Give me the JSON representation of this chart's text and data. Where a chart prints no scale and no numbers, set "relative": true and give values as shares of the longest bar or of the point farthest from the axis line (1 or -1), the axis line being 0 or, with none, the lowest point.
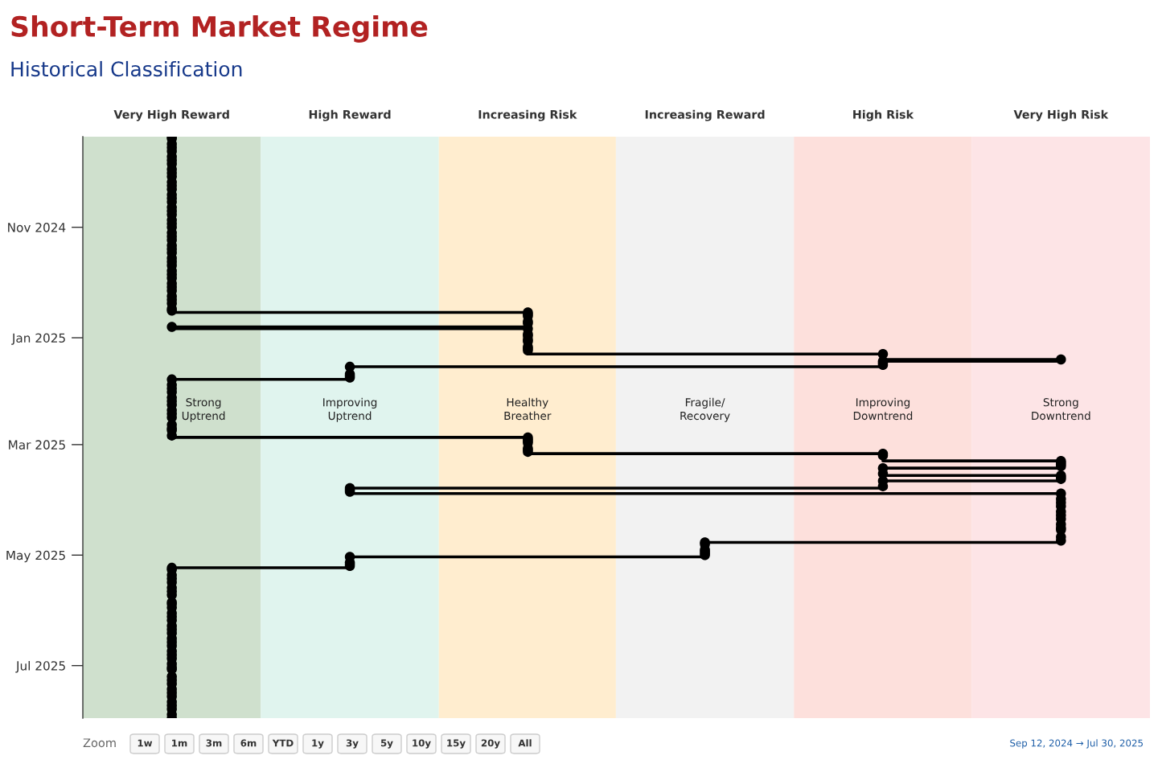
{
  "chart_data": {
    "type": "step",
    "orientation": "horizontal",
    "relative": true,
    "title": "Short-Term Market Regime",
    "subtitle": "Historical Classification",
    "series": [
      {
        "color": "#000000",
        "x": [
          "2024-09-12",
          "2024-09-13",
          "2024-09-16",
          "2024-09-18",
          "2024-09-20",
          "2024-09-23",
          "2024-09-25",
          "2024-09-27",
          "2024-09-30",
          "2024-10-02",
          "2024-10-04",
          "2024-10-07",
          "2024-10-09",
          "2024-10-11",
          "2024-10-14",
          "2024-10-16",
          "2024-10-18",
          "2024-10-21",
          "2024-10-23",
          "2024-10-25",
          "2024-10-28",
          "2024-10-30",
          "2024-11-01",
          "2024-11-04",
          "2024-11-06",
          "2024-11-08",
          "2024-11-11",
          "2024-11-13",
          "2024-11-15",
          "2024-11-18",
          "2024-11-20",
          "2024-11-22",
          "2024-11-25",
          "2024-11-27",
          "2024-11-29",
          "2024-12-02",
          "2024-12-04",
          "2024-12-06",
          "2024-12-09",
          "2024-12-11",
          "2024-12-13",
          "2024-12-16",
          "2024-12-17",
          "2024-12-18",
          "2024-12-19",
          "2024-12-20",
          "2024-12-23",
          "2024-12-24",
          "2024-12-26",
          "2024-12-27",
          "2024-12-30",
          "2024-12-31",
          "2025-01-02",
          "2025-01-03",
          "2025-01-06",
          "2025-01-07",
          "2025-01-08",
          "2025-01-10",
          "2025-01-13",
          "2025-01-14",
          "2025-01-15",
          "2025-01-16",
          "2025-01-17",
          "2025-01-21",
          "2025-01-22",
          "2025-01-23",
          "2025-01-24",
          "2025-01-27",
          "2025-01-29",
          "2025-01-31",
          "2025-02-03",
          "2025-02-05",
          "2025-02-07",
          "2025-02-10",
          "2025-02-12",
          "2025-02-14",
          "2025-02-18",
          "2025-02-20",
          "2025-02-21",
          "2025-02-24",
          "2025-02-25",
          "2025-02-26",
          "2025-02-27",
          "2025-02-28",
          "2025-03-03",
          "2025-03-04",
          "2025-03-05",
          "2025-03-06",
          "2025-03-07",
          "2025-03-10",
          "2025-03-11",
          "2025-03-12",
          "2025-03-13",
          "2025-03-14",
          "2025-03-17",
          "2025-03-18",
          "2025-03-19",
          "2025-03-20",
          "2025-03-21",
          "2025-03-24",
          "2025-03-25",
          "2025-03-26",
          "2025-03-27",
          "2025-03-28",
          "2025-03-31",
          "2025-04-02",
          "2025-04-04",
          "2025-04-07",
          "2025-04-09",
          "2025-04-11",
          "2025-04-14",
          "2025-04-16",
          "2025-04-17",
          "2025-04-21",
          "2025-04-23",
          "2025-04-24",
          "2025-04-25",
          "2025-04-28",
          "2025-04-29",
          "2025-04-30",
          "2025-05-01",
          "2025-05-02",
          "2025-05-05",
          "2025-05-06",
          "2025-05-07",
          "2025-05-08",
          "2025-05-09",
          "2025-05-12",
          "2025-05-14",
          "2025-05-16",
          "2025-05-19",
          "2025-05-21",
          "2025-05-23",
          "2025-05-27",
          "2025-05-28",
          "2025-05-30",
          "2025-06-02",
          "2025-06-04",
          "2025-06-06",
          "2025-06-09",
          "2025-06-11",
          "2025-06-13",
          "2025-06-16",
          "2025-06-18",
          "2025-06-20",
          "2025-06-23",
          "2025-06-25",
          "2025-06-27",
          "2025-06-30",
          "2025-07-02",
          "2025-07-03",
          "2025-07-07",
          "2025-07-09",
          "2025-07-11",
          "2025-07-14",
          "2025-07-16",
          "2025-07-18",
          "2025-07-21",
          "2025-07-23",
          "2025-07-25",
          "2025-07-28",
          "2025-07-30"
        ],
        "values": [
          0.091,
          0.091,
          0.091,
          0.091,
          0.091,
          0.091,
          0.091,
          0.091,
          0.091,
          0.091,
          0.091,
          0.091,
          0.091,
          0.091,
          0.091,
          0.091,
          0.091,
          0.091,
          0.091,
          0.091,
          0.091,
          0.091,
          0.091,
          0.091,
          0.091,
          0.091,
          0.091,
          0.091,
          0.091,
          0.091,
          0.091,
          0.091,
          0.091,
          0.091,
          0.091,
          0.091,
          0.091,
          0.091,
          0.091,
          0.091,
          0.091,
          0.091,
          0.091,
          0.455,
          0.455,
          0.455,
          0.455,
          0.455,
          0.091,
          0.455,
          0.455,
          0.455,
          0.455,
          0.455,
          0.455,
          0.455,
          0.455,
          0.818,
          1,
          0.818,
          0.818,
          0.818,
          0.273,
          0.273,
          0.273,
          0.273,
          0.091,
          0.091,
          0.091,
          0.091,
          0.091,
          0.091,
          0.091,
          0.091,
          0.091,
          0.091,
          0.091,
          0.091,
          0.091,
          0.091,
          0.455,
          0.455,
          0.455,
          0.455,
          0.455,
          0.455,
          0.455,
          0.818,
          0.818,
          1,
          1,
          1,
          1,
          0.818,
          0.818,
          1,
          1,
          1,
          0.818,
          0.818,
          0.273,
          0.273,
          0.273,
          1,
          1,
          1,
          1,
          1,
          1,
          1,
          1,
          1,
          1,
          1,
          1,
          0.636,
          0.636,
          0.636,
          0.636,
          0.636,
          0.636,
          0.273,
          0.273,
          0.273,
          0.273,
          0.091,
          0.091,
          0.091,
          0.091,
          0.091,
          0.091,
          0.091,
          0.091,
          0.091,
          0.091,
          0.091,
          0.091,
          0.091,
          0.091,
          0.091,
          0.091,
          0.091,
          0.091,
          0.091,
          0.091,
          0.091,
          0.091,
          0.091,
          0.091,
          0.091,
          0.091,
          0.091,
          0.091,
          0.091,
          0.091,
          0.091,
          0.091,
          0.091,
          0.091,
          0.091,
          0.091,
          0.091
        ]
      }
    ],
    "ylim": [
      "2025-07-30",
      "2024-09-12"
    ],
    "yticks": [
      {
        "value": "2024-11-01",
        "label": "Nov 2024"
      },
      {
        "value": "2025-01-01",
        "label": "Jan 2025"
      },
      {
        "value": "2025-03-01",
        "label": "Mar 2025"
      },
      {
        "value": "2025-05-01",
        "label": "May 2025"
      },
      {
        "value": "2025-07-01",
        "label": "Jul 2025"
      }
    ],
    "marker": "circle",
    "bands": [
      {
        "axis": "x",
        "from": 0,
        "to": 0.182,
        "label": "Strong Uptrend",
        "color": "#cfe0cd"
      },
      {
        "axis": "x",
        "from": 0.182,
        "to": 0.364,
        "label": "Improving Uptrend",
        "color": "#e0f4ee"
      },
      {
        "axis": "x",
        "from": 0.364,
        "to": 0.545,
        "label": "Healthy Breather",
        "color": "#ffedcf"
      },
      {
        "axis": "x",
        "from": 0.545,
        "to": 0.727,
        "label": "Fragile/ Recovery",
        "color": "#f2f2f2"
      },
      {
        "axis": "x",
        "from": 0.727,
        "to": 0.909,
        "label": "Improving Downtrend",
        "color": "#fde0dc"
      },
      {
        "axis": "x",
        "from": 0.909,
        "to": 1.091,
        "label": "Strong Downtrend",
        "color": "#fde4e6"
      }
    ],
    "annotations": [
      "Very High Reward",
      "High Reward",
      "Increasing Risk",
      "Increasing Reward",
      "High Risk",
      "Very High Risk",
      "Zoom",
      "1w",
      "1m",
      "3m",
      "6m",
      "YTD",
      "1y",
      "3y",
      "5y",
      "10y",
      "15y",
      "20y",
      "All",
      "Sep 12, 2024 → Jul 30, 2025"
    ]
  }
}
